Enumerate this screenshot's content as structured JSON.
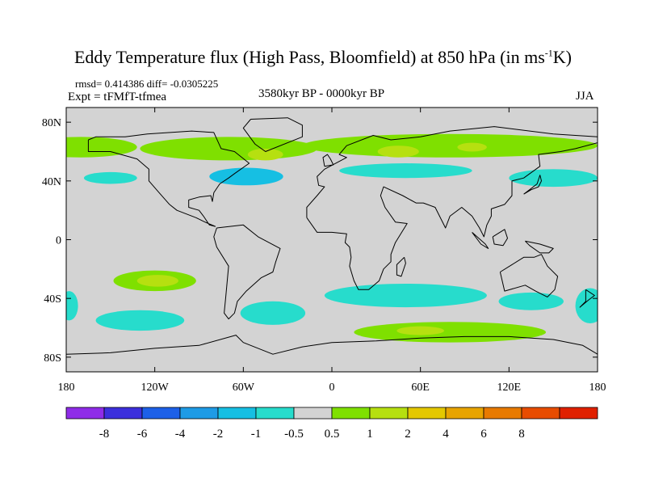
{
  "title": {
    "main_before": "Eddy Temperature flux (High Pass, Bloomfield) at 850 hPa (in ms",
    "superscript": "-1",
    "main_after": "K)"
  },
  "stats_line": "rmsd= 0.414386 diff= -0.0305225",
  "experiment_label": "Expt = tFMfT-tfmea",
  "period_label": "3580kyr BP - 0000kyr BP",
  "season_label": "JJA",
  "map": {
    "background_color": "#d3d3d3",
    "lat_ticks": [
      {
        "lat": 80,
        "label": "80N"
      },
      {
        "lat": 40,
        "label": "40N"
      },
      {
        "lat": 0,
        "label": "0"
      },
      {
        "lat": -40,
        "label": "40S"
      },
      {
        "lat": -80,
        "label": "80S"
      }
    ],
    "lon_ticks": [
      {
        "lon": -180,
        "label": "180"
      },
      {
        "lon": -120,
        "label": "120W"
      },
      {
        "lon": -60,
        "label": "60W"
      },
      {
        "lon": 0,
        "label": "0"
      },
      {
        "lon": 60,
        "label": "60E"
      },
      {
        "lon": 120,
        "label": "120E"
      },
      {
        "lon": 180,
        "label": "180"
      }
    ]
  },
  "colorbar": {
    "colors": [
      "#8f2ce8",
      "#3c2fdc",
      "#1d60e8",
      "#1e9be6",
      "#16bfe3",
      "#27dccc",
      "#d3d3d3",
      "#7fe000",
      "#b6e010",
      "#e4c800",
      "#e8a400",
      "#e87a00",
      "#e84c00",
      "#e02000"
    ],
    "labels": [
      "-8",
      "-6",
      "-4",
      "-2",
      "-1",
      "-0.5",
      "0.5",
      "1",
      "2",
      "4",
      "6",
      "8"
    ]
  },
  "field_regions": [
    {
      "name": "nh-green-band-west",
      "lon": -170,
      "lat": 63,
      "rx": 38,
      "ry": 7,
      "level": "1"
    },
    {
      "name": "nh-green-band-central",
      "lon": -70,
      "lat": 62,
      "rx": 60,
      "ry": 8,
      "level": "1"
    },
    {
      "name": "nh-green-band-east",
      "lon": 80,
      "lat": 64,
      "rx": 100,
      "ry": 8,
      "level": "1"
    },
    {
      "name": "nh-yellow-patch-1",
      "lon": -45,
      "lat": 58,
      "rx": 12,
      "ry": 4,
      "level": "2"
    },
    {
      "name": "nh-yellow-patch-2",
      "lon": 45,
      "lat": 60,
      "rx": 14,
      "ry": 4,
      "level": "2"
    },
    {
      "name": "nh-yellow-patch-3",
      "lon": 95,
      "lat": 63,
      "rx": 10,
      "ry": 3,
      "level": "2"
    },
    {
      "name": "n-atlantic-blue",
      "lon": -58,
      "lat": 43,
      "rx": 25,
      "ry": 6,
      "level": "-1"
    },
    {
      "name": "n-pacific-blue-west",
      "lon": -150,
      "lat": 42,
      "rx": 18,
      "ry": 4,
      "level": "-0.5"
    },
    {
      "name": "n-pacific-blue-east",
      "lon": 150,
      "lat": 42,
      "rx": 30,
      "ry": 6,
      "level": "-0.5"
    },
    {
      "name": "central-asia-blue",
      "lon": 50,
      "lat": 47,
      "rx": 45,
      "ry": 5,
      "level": "-0.5"
    },
    {
      "name": "s-pacific-green",
      "lon": -120,
      "lat": -28,
      "rx": 28,
      "ry": 7,
      "level": "1"
    },
    {
      "name": "s-pacific-yellow",
      "lon": -118,
      "lat": -28,
      "rx": 14,
      "ry": 4,
      "level": "2"
    },
    {
      "name": "s-pacific-blue",
      "lon": -130,
      "lat": -55,
      "rx": 30,
      "ry": 7,
      "level": "-0.5"
    },
    {
      "name": "s-atlantic-blue",
      "lon": -40,
      "lat": -50,
      "rx": 22,
      "ry": 8,
      "level": "-0.5"
    },
    {
      "name": "indian-ocean-blue",
      "lon": 50,
      "lat": -38,
      "rx": 55,
      "ry": 8,
      "level": "-0.5"
    },
    {
      "name": "southern-ocean-green",
      "lon": 80,
      "lat": -63,
      "rx": 65,
      "ry": 7,
      "level": "1"
    },
    {
      "name": "southern-ocean-yellow",
      "lon": 60,
      "lat": -62,
      "rx": 16,
      "ry": 3,
      "level": "2"
    },
    {
      "name": "australia-blue",
      "lon": 135,
      "lat": -42,
      "rx": 22,
      "ry": 6,
      "level": "-0.5"
    },
    {
      "name": "east-edge-blue",
      "lon": 175,
      "lat": -45,
      "rx": 10,
      "ry": 12,
      "level": "-0.5"
    },
    {
      "name": "west-edge-blue",
      "lon": -178,
      "lat": -45,
      "rx": 6,
      "ry": 10,
      "level": "-0.5"
    }
  ],
  "coastlines": [
    {
      "name": "north-america",
      "points": [
        [
          -165,
          68
        ],
        [
          -160,
          70
        ],
        [
          -140,
          70
        ],
        [
          -125,
          72
        ],
        [
          -95,
          74
        ],
        [
          -80,
          73
        ],
        [
          -75,
          62
        ],
        [
          -66,
          60
        ],
        [
          -56,
          52
        ],
        [
          -66,
          45
        ],
        [
          -70,
          42
        ],
        [
          -76,
          38
        ],
        [
          -80,
          32
        ],
        [
          -81,
          26
        ],
        [
          -82,
          30
        ],
        [
          -90,
          29
        ],
        [
          -97,
          27
        ],
        [
          -97,
          22
        ],
        [
          -90,
          20
        ],
        [
          -87,
          16
        ],
        [
          -83,
          10
        ],
        [
          -79,
          9
        ],
        [
          -86,
          12
        ],
        [
          -92,
          15
        ],
        [
          -105,
          20
        ],
        [
          -110,
          24
        ],
        [
          -117,
          32
        ],
        [
          -124,
          40
        ],
        [
          -124,
          48
        ],
        [
          -132,
          55
        ],
        [
          -150,
          60
        ],
        [
          -165,
          60
        ],
        [
          -165,
          68
        ]
      ]
    },
    {
      "name": "greenland",
      "points": [
        [
          -55,
          82
        ],
        [
          -30,
          83
        ],
        [
          -20,
          78
        ],
        [
          -20,
          70
        ],
        [
          -45,
          60
        ],
        [
          -52,
          65
        ],
        [
          -60,
          76
        ],
        [
          -55,
          82
        ]
      ]
    },
    {
      "name": "south-america",
      "points": [
        [
          -78,
          8
        ],
        [
          -60,
          10
        ],
        [
          -50,
          2
        ],
        [
          -35,
          -6
        ],
        [
          -38,
          -15
        ],
        [
          -40,
          -22
        ],
        [
          -48,
          -26
        ],
        [
          -58,
          -35
        ],
        [
          -64,
          -42
        ],
        [
          -66,
          -50
        ],
        [
          -70,
          -54
        ],
        [
          -73,
          -50
        ],
        [
          -72,
          -40
        ],
        [
          -70,
          -18
        ],
        [
          -78,
          -5
        ],
        [
          -80,
          2
        ],
        [
          -78,
          8
        ]
      ]
    },
    {
      "name": "africa-eurasia",
      "points": [
        [
          -17,
          15
        ],
        [
          -10,
          5
        ],
        [
          0,
          5
        ],
        [
          10,
          4
        ],
        [
          9,
          -2
        ],
        [
          12,
          -5
        ],
        [
          13,
          -12
        ],
        [
          12,
          -18
        ],
        [
          15,
          -28
        ],
        [
          18,
          -34
        ],
        [
          25,
          -34
        ],
        [
          32,
          -28
        ],
        [
          35,
          -20
        ],
        [
          40,
          -15
        ],
        [
          40,
          -10
        ],
        [
          43,
          -2
        ],
        [
          51,
          11
        ],
        [
          43,
          12
        ],
        [
          36,
          22
        ],
        [
          33,
          30
        ],
        [
          35,
          36
        ],
        [
          48,
          30
        ],
        [
          57,
          25
        ],
        [
          62,
          25
        ],
        [
          70,
          22
        ],
        [
          77,
          8
        ],
        [
          80,
          16
        ],
        [
          88,
          22
        ],
        [
          95,
          16
        ],
        [
          100,
          8
        ],
        [
          103,
          2
        ],
        [
          105,
          10
        ],
        [
          108,
          16
        ],
        [
          108,
          21
        ],
        [
          117,
          24
        ],
        [
          122,
          30
        ],
        [
          122,
          40
        ],
        [
          130,
          42
        ],
        [
          141,
          50
        ],
        [
          140,
          58
        ],
        [
          155,
          60
        ],
        [
          165,
          62
        ],
        [
          180,
          66
        ],
        [
          180,
          70
        ],
        [
          150,
          72
        ],
        [
          110,
          77
        ],
        [
          80,
          74
        ],
        [
          60,
          70
        ],
        [
          40,
          68
        ],
        [
          28,
          71
        ],
        [
          10,
          64
        ],
        [
          5,
          58
        ],
        [
          10,
          56
        ],
        [
          -5,
          48
        ],
        [
          -10,
          43
        ],
        [
          -9,
          37
        ],
        [
          -5,
          36
        ],
        [
          -10,
          30
        ],
        [
          -17,
          22
        ],
        [
          -17,
          15
        ]
      ]
    },
    {
      "name": "great-britain",
      "points": [
        [
          -5,
          50
        ],
        [
          1,
          51
        ],
        [
          -1,
          55
        ],
        [
          -3,
          58
        ],
        [
          -6,
          56
        ],
        [
          -5,
          50
        ]
      ]
    },
    {
      "name": "madagascar",
      "points": [
        [
          49,
          -12
        ],
        [
          50,
          -16
        ],
        [
          47,
          -25
        ],
        [
          44,
          -24
        ],
        [
          44,
          -17
        ],
        [
          49,
          -12
        ]
      ]
    },
    {
      "name": "japan",
      "points": [
        [
          130,
          31
        ],
        [
          135,
          34
        ],
        [
          140,
          36
        ],
        [
          142,
          40
        ],
        [
          141,
          44
        ],
        [
          139,
          38
        ],
        [
          134,
          34
        ],
        [
          130,
          31
        ]
      ]
    },
    {
      "name": "australia",
      "points": [
        [
          114,
          -22
        ],
        [
          122,
          -17
        ],
        [
          130,
          -12
        ],
        [
          137,
          -12
        ],
        [
          142,
          -10
        ],
        [
          146,
          -18
        ],
        [
          153,
          -25
        ],
        [
          151,
          -34
        ],
        [
          146,
          -39
        ],
        [
          138,
          -35
        ],
        [
          131,
          -31
        ],
        [
          117,
          -35
        ],
        [
          114,
          -22
        ]
      ]
    },
    {
      "name": "new-zealand",
      "points": [
        [
          172,
          -34
        ],
        [
          178,
          -38
        ],
        [
          174,
          -41
        ],
        [
          168,
          -46
        ],
        [
          172,
          -42
        ],
        [
          172,
          -34
        ]
      ]
    },
    {
      "name": "borneo",
      "points": [
        [
          109,
          2
        ],
        [
          117,
          7
        ],
        [
          119,
          1
        ],
        [
          116,
          -4
        ],
        [
          110,
          -3
        ],
        [
          109,
          2
        ]
      ]
    },
    {
      "name": "sumatra",
      "points": [
        [
          95,
          5
        ],
        [
          104,
          -3
        ],
        [
          106,
          -6
        ],
        [
          101,
          -3
        ],
        [
          95,
          5
        ]
      ]
    },
    {
      "name": "new-guinea",
      "points": [
        [
          131,
          -1
        ],
        [
          141,
          -3
        ],
        [
          150,
          -6
        ],
        [
          147,
          -9
        ],
        [
          141,
          -9
        ],
        [
          134,
          -4
        ],
        [
          131,
          -1
        ]
      ]
    },
    {
      "name": "antarctica",
      "points": [
        [
          -180,
          -78
        ],
        [
          -150,
          -77
        ],
        [
          -120,
          -74
        ],
        [
          -90,
          -72
        ],
        [
          -65,
          -65
        ],
        [
          -60,
          -70
        ],
        [
          -40,
          -78
        ],
        [
          -20,
          -73
        ],
        [
          0,
          -70
        ],
        [
          30,
          -69
        ],
        [
          60,
          -67
        ],
        [
          90,
          -66
        ],
        [
          120,
          -66
        ],
        [
          150,
          -68
        ],
        [
          170,
          -72
        ],
        [
          180,
          -78
        ]
      ]
    }
  ]
}
